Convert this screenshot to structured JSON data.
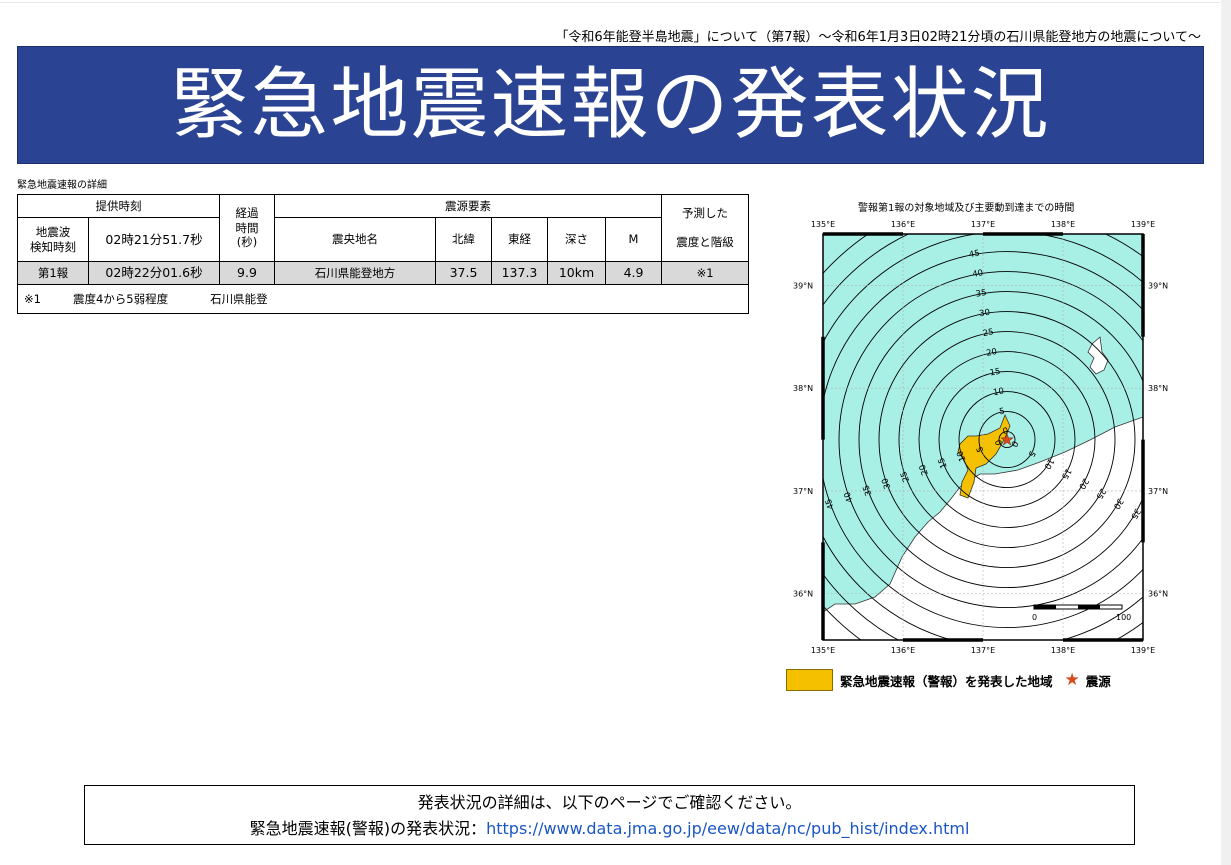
{
  "header": {
    "subtitle": "「令和6年能登半島地震」について（第7報）～令和6年1月3日02時21分頃の石川県能登地方の地震について～",
    "title": "緊急地震速報の発表状況"
  },
  "section_label": "緊急地震速報の詳細",
  "table": {
    "col_provided_time": "提供時刻",
    "col_elapsed_l1": "経過",
    "col_elapsed_l2": "時間",
    "col_elapsed_l3": "(秒)",
    "col_source": "震源要素",
    "col_predicted_l1": "予測した",
    "col_predicted_l2": "震度と階級",
    "detect_label_l1": "地震波",
    "detect_label_l2": "検知時刻",
    "detect_time": "02時21分51.7秒",
    "col_epicenter": "震央地名",
    "col_lat": "北緯",
    "col_lon": "東経",
    "col_depth": "深さ",
    "col_mag": "M",
    "rows": [
      {
        "report": "第1報",
        "time": "02時22分01.6秒",
        "elapsed": "9.9",
        "epicenter": "石川県能登地方",
        "lat": "37.5",
        "lon": "137.3",
        "depth": "10km",
        "mag": "4.9",
        "predicted": "※1"
      }
    ],
    "note_mark": "※1",
    "note_intensity": "震度4から5弱程度",
    "note_region": "石川県能登"
  },
  "map": {
    "title": "警報第1報の対象地域及び主要動到達までの時間",
    "lon_labels": [
      "135°E",
      "136°E",
      "137°E",
      "138°E",
      "139°E"
    ],
    "lat_labels": [
      "39°N",
      "38°N",
      "37°N",
      "36°N"
    ],
    "contour_labels": [
      "0",
      "5",
      "10",
      "15",
      "20",
      "25",
      "30",
      "35",
      "40",
      "45",
      "50"
    ],
    "scale_labels": [
      "0",
      "100"
    ],
    "epicenter": {
      "lat": 37.5,
      "lon": 137.3
    },
    "colors": {
      "sea": "#a8f0e6",
      "warning_area": "#f5c000",
      "epicenter_star": "#d84a1b"
    }
  },
  "legend": {
    "warning_area": "緊急地震速報（警報）を発表した地域",
    "epicenter": "震源",
    "star_icon": "★"
  },
  "info": {
    "line1": "発表状況の詳細は、以下のページでご確認ください。",
    "line2_label": "緊急地震速報(警報)の発表状況：",
    "url": "https://www.data.jma.go.jp/eew/data/nc/pub_hist/index.html"
  }
}
